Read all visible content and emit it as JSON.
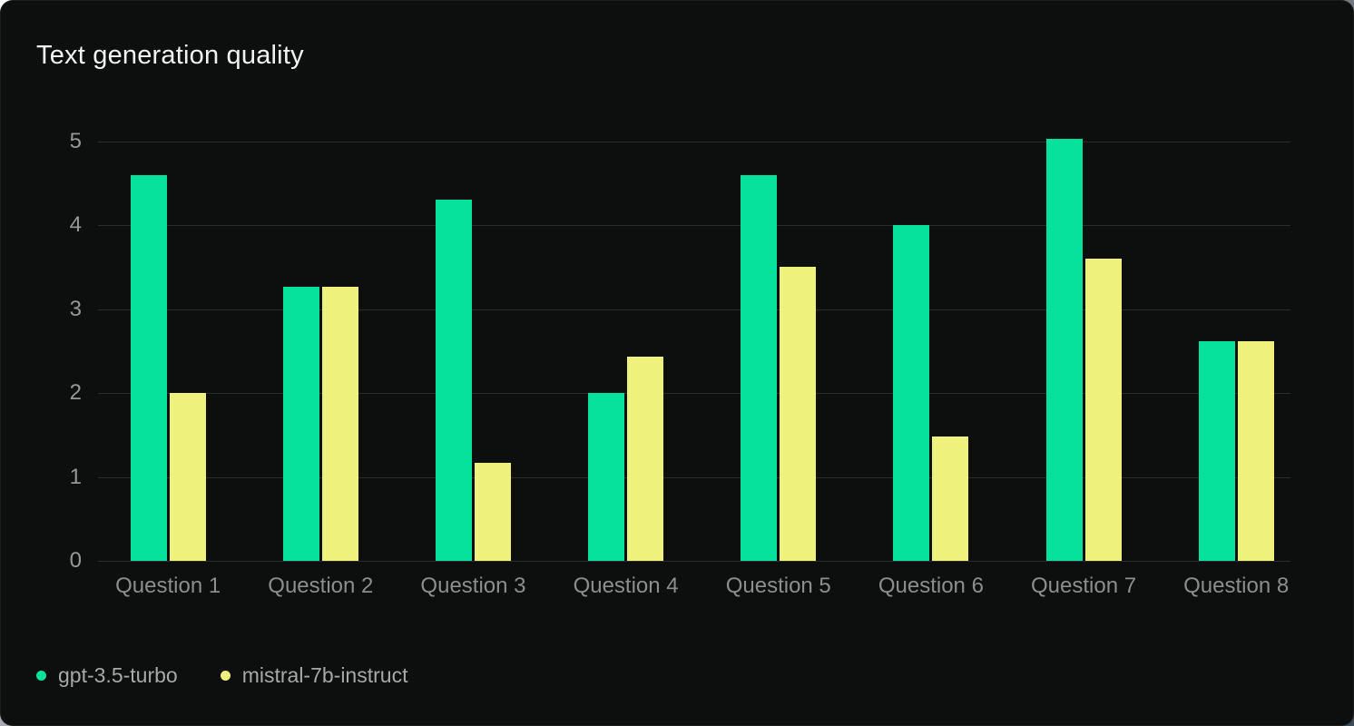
{
  "title": "Text generation quality",
  "colors": {
    "card_background": "#0d0e0e",
    "gridline": "#2a2b2a",
    "title_text": "#f2f2f2",
    "axis_label_text": "#8d8d8d",
    "legend_label_text": "#a8a8a8",
    "series1_green": "#06e29c",
    "series2_yellow": "#eef17b"
  },
  "chart_data": {
    "type": "bar",
    "title": "Text generation quality",
    "categories": [
      "Question 1",
      "Question 2",
      "Question 3",
      "Question 4",
      "Question 5",
      "Question 6",
      "Question 7",
      "Question 8"
    ],
    "series": [
      {
        "name": "gpt-3.5-turbo",
        "color": "#06e29c",
        "values": [
          4.6,
          3.27,
          4.3,
          2.0,
          4.6,
          4.0,
          5.03,
          2.62
        ]
      },
      {
        "name": "mistral-7b-instruct",
        "color": "#eef17b",
        "values": [
          2.0,
          3.27,
          1.17,
          2.43,
          3.5,
          1.48,
          3.6,
          2.62
        ]
      }
    ],
    "xlabel": "",
    "ylabel": "",
    "ylim": [
      0,
      5
    ],
    "yticks": [
      0,
      1,
      2,
      3,
      4,
      5
    ],
    "grid": "horizontal",
    "legend_position": "bottom-left"
  },
  "legend": {
    "items": [
      {
        "label": "gpt-3.5-turbo"
      },
      {
        "label": "mistral-7b-instruct"
      }
    ]
  }
}
